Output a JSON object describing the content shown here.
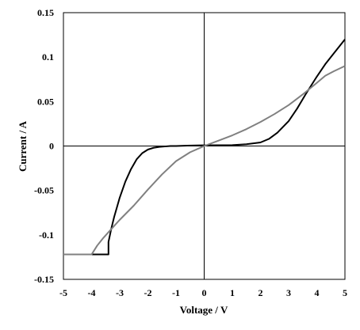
{
  "chart_data": {
    "type": "line",
    "title": "",
    "xlabel": "Voltage / V",
    "ylabel": "Current / A",
    "xlim": [
      -5,
      5
    ],
    "ylim": [
      -0.15,
      0.15
    ],
    "xticks": [
      "-5",
      "-4",
      "-3",
      "-2",
      "-1",
      "0",
      "1",
      "2",
      "3",
      "4",
      "5"
    ],
    "xtick_values": [
      -5,
      -4,
      -3,
      -2,
      -1,
      0,
      1,
      2,
      3,
      4,
      5
    ],
    "yticks": [
      "0.15",
      "0.1",
      "0.05",
      "0",
      "-0.05",
      "-0.1",
      "-0.15"
    ],
    "ytick_values": [
      0.15,
      0.1,
      0.05,
      0,
      -0.05,
      -0.1,
      -0.15
    ],
    "grid": false,
    "legend": "none",
    "series": [
      {
        "color": "#000000",
        "x": [
          -5,
          -3.4,
          -3.4,
          -3.3,
          -3.2,
          -3.0,
          -2.8,
          -2.6,
          -2.4,
          -2.2,
          -2.0,
          -1.8,
          -1.6,
          -1.4,
          -1.2,
          -1.0,
          -0.6,
          0,
          1.0,
          1.5,
          2.0,
          2.3,
          2.6,
          3.0,
          3.3,
          3.6,
          4.0,
          4.3,
          4.6,
          5.0
        ],
        "y": [
          -0.122,
          -0.122,
          -0.108,
          -0.093,
          -0.08,
          -0.058,
          -0.04,
          -0.026,
          -0.015,
          -0.008,
          -0.004,
          -0.002,
          -0.001,
          -0.0005,
          0,
          0,
          0.0005,
          0.0008,
          0.001,
          0.002,
          0.004,
          0.008,
          0.015,
          0.028,
          0.042,
          0.058,
          0.078,
          0.092,
          0.104,
          0.12
        ]
      },
      {
        "color": "#808080",
        "x": [
          -5,
          -4.0,
          -3.8,
          -3.6,
          -3.4,
          -3.2,
          -3.0,
          -2.5,
          -2.0,
          -1.5,
          -1.0,
          -0.5,
          0,
          0.5,
          1.0,
          1.5,
          2.0,
          2.5,
          3.0,
          3.5,
          4.0,
          4.3,
          4.6,
          5.0
        ],
        "y": [
          -0.122,
          -0.122,
          -0.112,
          -0.104,
          -0.097,
          -0.09,
          -0.083,
          -0.067,
          -0.049,
          -0.032,
          -0.017,
          -0.007,
          0,
          0.006,
          0.012,
          0.019,
          0.027,
          0.036,
          0.046,
          0.058,
          0.071,
          0.079,
          0.084,
          0.09
        ]
      }
    ]
  }
}
